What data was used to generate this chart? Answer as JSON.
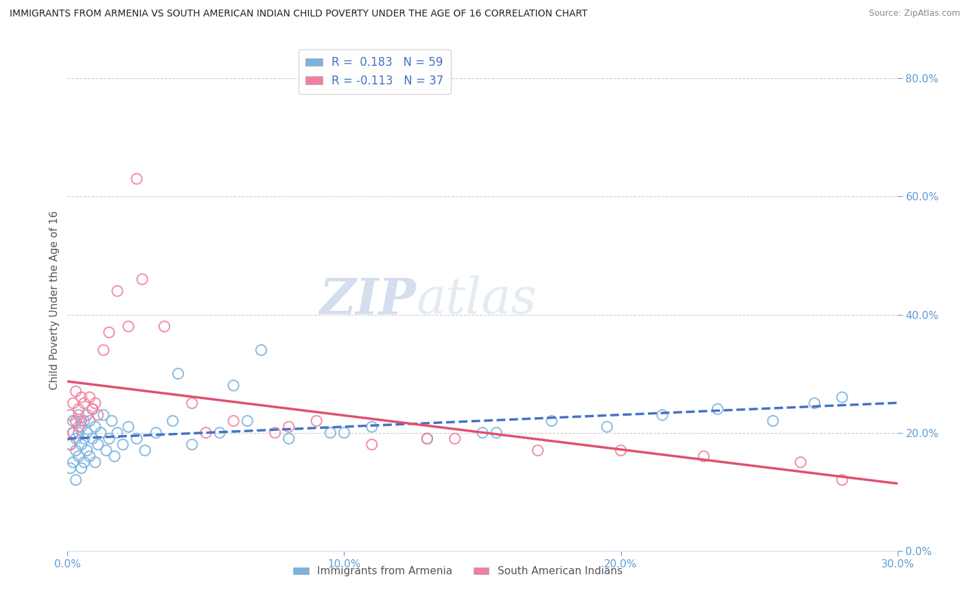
{
  "title": "IMMIGRANTS FROM ARMENIA VS SOUTH AMERICAN INDIAN CHILD POVERTY UNDER THE AGE OF 16 CORRELATION CHART",
  "source": "Source: ZipAtlas.com",
  "ylabel": "Child Poverty Under the Age of 16",
  "bg_color": "#ffffff",
  "grid_color": "#cccccc",
  "armenia_color": "#7ab3e0",
  "sa_indian_color": "#f080a0",
  "tick_color": "#5b9bd5",
  "xlim": [
    0.0,
    0.3
  ],
  "ylim": [
    0.0,
    0.85
  ],
  "xtick_vals": [
    0.0,
    0.1,
    0.2,
    0.3
  ],
  "ytick_vals": [
    0.0,
    0.2,
    0.4,
    0.6,
    0.8
  ],
  "armenia_x": [
    0.001,
    0.001,
    0.002,
    0.002,
    0.002,
    0.003,
    0.003,
    0.003,
    0.004,
    0.004,
    0.004,
    0.005,
    0.005,
    0.005,
    0.006,
    0.006,
    0.006,
    0.007,
    0.007,
    0.008,
    0.008,
    0.009,
    0.009,
    0.01,
    0.01,
    0.011,
    0.012,
    0.013,
    0.014,
    0.015,
    0.016,
    0.017,
    0.018,
    0.02,
    0.022,
    0.025,
    0.028,
    0.032,
    0.038,
    0.045,
    0.055,
    0.065,
    0.08,
    0.095,
    0.11,
    0.13,
    0.155,
    0.175,
    0.195,
    0.215,
    0.235,
    0.255,
    0.27,
    0.28,
    0.15,
    0.04,
    0.07,
    0.1,
    0.06
  ],
  "armenia_y": [
    0.18,
    0.14,
    0.2,
    0.15,
    0.22,
    0.17,
    0.19,
    0.12,
    0.2,
    0.16,
    0.23,
    0.18,
    0.14,
    0.21,
    0.19,
    0.15,
    0.22,
    0.17,
    0.2,
    0.16,
    0.22,
    0.19,
    0.24,
    0.15,
    0.21,
    0.18,
    0.2,
    0.23,
    0.17,
    0.19,
    0.22,
    0.16,
    0.2,
    0.18,
    0.21,
    0.19,
    0.17,
    0.2,
    0.22,
    0.18,
    0.2,
    0.22,
    0.19,
    0.2,
    0.21,
    0.19,
    0.2,
    0.22,
    0.21,
    0.23,
    0.24,
    0.22,
    0.25,
    0.26,
    0.2,
    0.3,
    0.34,
    0.2,
    0.28
  ],
  "sa_indian_x": [
    0.001,
    0.001,
    0.002,
    0.002,
    0.003,
    0.003,
    0.004,
    0.004,
    0.005,
    0.005,
    0.006,
    0.007,
    0.008,
    0.009,
    0.01,
    0.011,
    0.013,
    0.015,
    0.018,
    0.022,
    0.027,
    0.035,
    0.045,
    0.06,
    0.075,
    0.09,
    0.11,
    0.14,
    0.17,
    0.2,
    0.23,
    0.265,
    0.28,
    0.08,
    0.13,
    0.025,
    0.05
  ],
  "sa_indian_y": [
    0.23,
    0.18,
    0.25,
    0.2,
    0.22,
    0.27,
    0.24,
    0.21,
    0.26,
    0.22,
    0.25,
    0.23,
    0.26,
    0.24,
    0.25,
    0.23,
    0.34,
    0.37,
    0.44,
    0.38,
    0.46,
    0.38,
    0.25,
    0.22,
    0.2,
    0.22,
    0.18,
    0.19,
    0.17,
    0.17,
    0.16,
    0.15,
    0.12,
    0.21,
    0.19,
    0.63,
    0.2
  ],
  "watermark_zip": "ZIP",
  "watermark_atlas": "atlas",
  "legend_r1": "R =  0.183   N = 59",
  "legend_r2": "R = -0.113   N = 37",
  "bottom_label1": "Immigrants from Armenia",
  "bottom_label2": "South American Indians"
}
